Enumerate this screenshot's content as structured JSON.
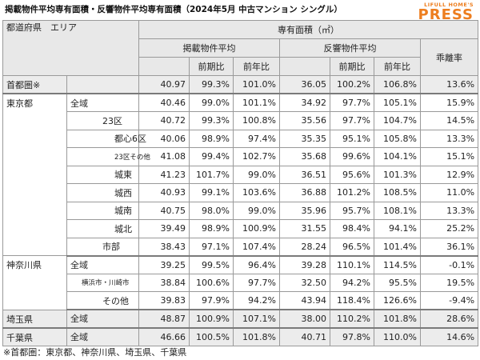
{
  "title": "掲載物件平均専有面積・反響物件平均専有面積（2024年5月 中古マンション シングル）",
  "logo": {
    "top": "LIFULL HOME'S",
    "main": "PRESS",
    "color": "#ed7e1f"
  },
  "headers": {
    "region": "都道府県　エリア",
    "area_group": "専有面積（㎡）",
    "listed": "掲載物件平均",
    "response": "反響物件平均",
    "divergence": "乖離率",
    "qoq": "前期比",
    "yoy": "前年比"
  },
  "rows": [
    {
      "pref": "首都圏※",
      "area": "",
      "listed": "40.97",
      "listed_qoq": "99.3%",
      "listed_yoy": "101.0%",
      "resp": "36.05",
      "resp_qoq": "100.2%",
      "resp_yoy": "106.8%",
      "div": "13.6%"
    },
    {
      "pref": "東京都",
      "area": "全域",
      "listed": "40.46",
      "listed_qoq": "99.0%",
      "listed_yoy": "101.1%",
      "resp": "34.92",
      "resp_qoq": "97.7%",
      "resp_yoy": "105.1%",
      "div": "15.9%"
    },
    {
      "pref": "",
      "area": "23区",
      "listed": "40.72",
      "listed_qoq": "99.3%",
      "listed_yoy": "100.8%",
      "resp": "35.56",
      "resp_qoq": "97.7%",
      "resp_yoy": "104.7%",
      "div": "14.5%"
    },
    {
      "pref": "",
      "area": "都心6区",
      "listed": "40.06",
      "listed_qoq": "98.9%",
      "listed_yoy": "97.4%",
      "resp": "35.35",
      "resp_qoq": "95.1%",
      "resp_yoy": "105.8%",
      "div": "13.3%"
    },
    {
      "pref": "",
      "area": "23区その他",
      "listed": "41.08",
      "listed_qoq": "99.4%",
      "listed_yoy": "102.7%",
      "resp": "35.68",
      "resp_qoq": "99.6%",
      "resp_yoy": "104.1%",
      "div": "15.1%"
    },
    {
      "pref": "",
      "area": "城東",
      "listed": "41.23",
      "listed_qoq": "101.7%",
      "listed_yoy": "99.0%",
      "resp": "36.51",
      "resp_qoq": "95.6%",
      "resp_yoy": "101.3%",
      "div": "12.9%"
    },
    {
      "pref": "",
      "area": "城西",
      "listed": "40.93",
      "listed_qoq": "99.1%",
      "listed_yoy": "103.6%",
      "resp": "36.88",
      "resp_qoq": "101.2%",
      "resp_yoy": "108.5%",
      "div": "11.0%"
    },
    {
      "pref": "",
      "area": "城南",
      "listed": "40.75",
      "listed_qoq": "98.0%",
      "listed_yoy": "99.0%",
      "resp": "35.96",
      "resp_qoq": "95.7%",
      "resp_yoy": "108.1%",
      "div": "13.3%"
    },
    {
      "pref": "",
      "area": "城北",
      "listed": "39.49",
      "listed_qoq": "98.9%",
      "listed_yoy": "100.9%",
      "resp": "31.55",
      "resp_qoq": "98.4%",
      "resp_yoy": "94.1%",
      "div": "25.2%"
    },
    {
      "pref": "",
      "area": "市部",
      "listed": "38.43",
      "listed_qoq": "97.1%",
      "listed_yoy": "107.4%",
      "resp": "28.24",
      "resp_qoq": "96.5%",
      "resp_yoy": "101.4%",
      "div": "36.1%"
    },
    {
      "pref": "神奈川県",
      "area": "全域",
      "listed": "39.25",
      "listed_qoq": "99.5%",
      "listed_yoy": "96.4%",
      "resp": "39.28",
      "resp_qoq": "110.1%",
      "resp_yoy": "114.5%",
      "div": "-0.1%"
    },
    {
      "pref": "",
      "area": "横浜市・川崎市",
      "listed": "38.84",
      "listed_qoq": "100.6%",
      "listed_yoy": "97.7%",
      "resp": "32.50",
      "resp_qoq": "94.2%",
      "resp_yoy": "95.5%",
      "div": "19.5%"
    },
    {
      "pref": "",
      "area": "その他",
      "listed": "39.83",
      "listed_qoq": "97.9%",
      "listed_yoy": "94.2%",
      "resp": "43.94",
      "resp_qoq": "118.4%",
      "resp_yoy": "126.6%",
      "div": "-9.4%"
    },
    {
      "pref": "埼玉県",
      "area": "全域",
      "listed": "48.87",
      "listed_qoq": "100.9%",
      "listed_yoy": "107.1%",
      "resp": "38.00",
      "resp_qoq": "110.2%",
      "resp_yoy": "101.8%",
      "div": "28.6%"
    },
    {
      "pref": "千葉県",
      "area": "全域",
      "listed": "46.66",
      "listed_qoq": "100.5%",
      "listed_yoy": "101.8%",
      "resp": "40.71",
      "resp_qoq": "97.8%",
      "resp_yoy": "110.0%",
      "div": "14.6%"
    }
  ],
  "footnote": "※首都圏：東京都、神奈川県、埼玉県、千葉県"
}
